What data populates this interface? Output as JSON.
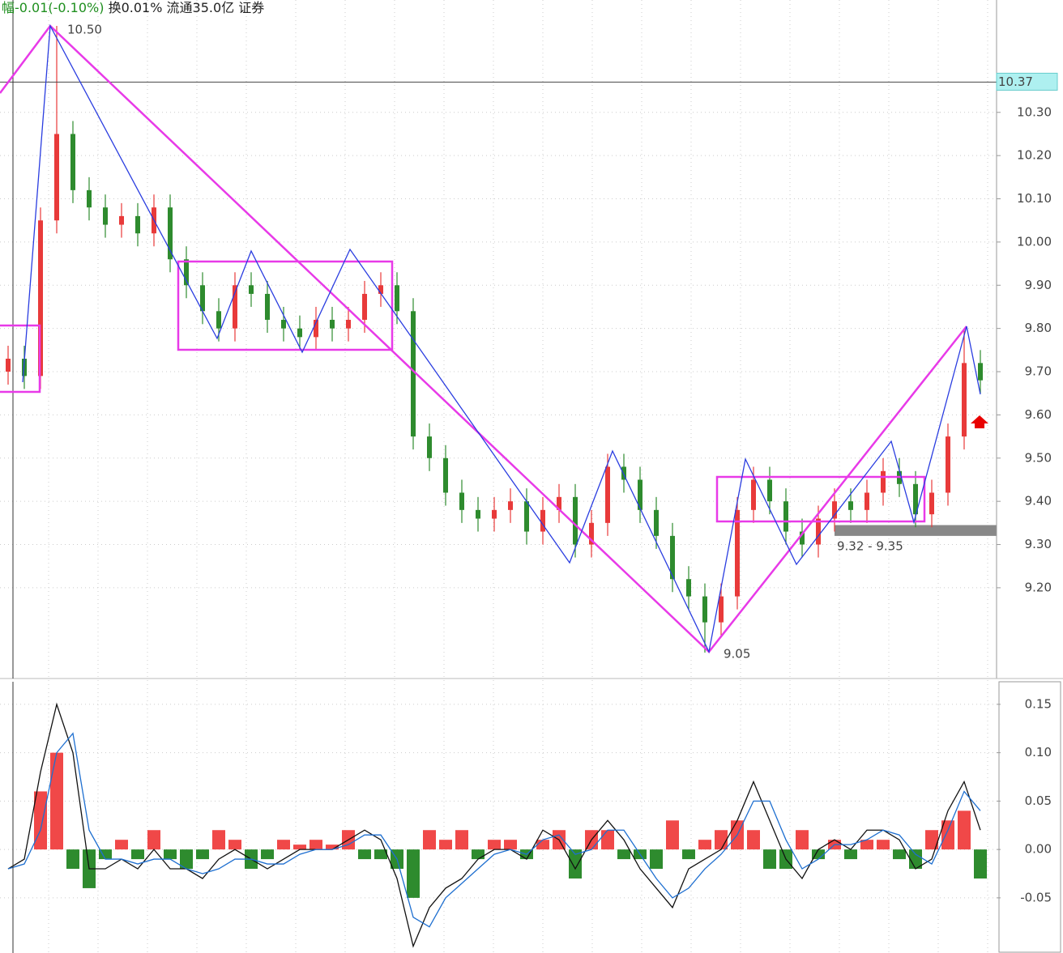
{
  "header": {
    "change": "幅-0.01(-0.10%)",
    "stats": "换0.01% 流通35.0亿 证券"
  },
  "chart_data": [
    {
      "type": "candlestick",
      "up_color": "#e83a3a",
      "down_color": "#2e8b2e",
      "open": [
        9.7,
        9.73,
        9.69,
        10.05,
        10.25,
        10.12,
        10.08,
        10.04,
        10.06,
        10.02,
        10.08,
        9.96,
        9.9,
        9.84,
        9.8,
        9.9,
        9.88,
        9.82,
        9.8,
        9.78,
        9.82,
        9.8,
        9.82,
        9.88,
        9.9,
        9.84,
        9.55,
        9.5,
        9.42,
        9.38,
        9.36,
        9.38,
        9.4,
        9.33,
        9.38,
        9.41,
        9.3,
        9.35,
        9.48,
        9.45,
        9.38,
        9.32,
        9.22,
        9.18,
        9.12,
        9.18,
        9.38,
        9.45,
        9.4,
        9.33,
        9.3,
        9.36,
        9.4,
        9.38,
        9.42,
        9.47,
        9.44,
        9.37,
        9.42,
        9.55,
        9.72
      ],
      "high": [
        9.76,
        9.76,
        10.08,
        10.5,
        10.28,
        10.15,
        10.11,
        10.09,
        10.09,
        10.11,
        10.11,
        9.99,
        9.93,
        9.87,
        9.93,
        9.93,
        9.91,
        9.85,
        9.83,
        9.85,
        9.85,
        9.85,
        9.91,
        9.93,
        9.93,
        9.87,
        9.58,
        9.53,
        9.45,
        9.41,
        9.41,
        9.43,
        9.43,
        9.41,
        9.44,
        9.44,
        9.38,
        9.51,
        9.51,
        9.48,
        9.41,
        9.35,
        9.25,
        9.21,
        9.21,
        9.41,
        9.48,
        9.48,
        9.43,
        9.36,
        9.39,
        9.43,
        9.43,
        9.45,
        9.5,
        9.5,
        9.47,
        9.45,
        9.58,
        9.8,
        9.75
      ],
      "low": [
        9.67,
        9.66,
        9.66,
        10.02,
        10.09,
        10.05,
        10.01,
        10.01,
        9.99,
        9.99,
        9.93,
        9.87,
        9.81,
        9.77,
        9.77,
        9.85,
        9.79,
        9.77,
        9.75,
        9.75,
        9.77,
        9.77,
        9.79,
        9.85,
        9.81,
        9.52,
        9.47,
        9.39,
        9.35,
        9.33,
        9.33,
        9.35,
        9.3,
        9.3,
        9.35,
        9.27,
        9.27,
        9.32,
        9.42,
        9.35,
        9.29,
        9.19,
        9.15,
        9.05,
        9.09,
        9.15,
        9.35,
        9.37,
        9.3,
        9.27,
        9.27,
        9.33,
        9.35,
        9.35,
        9.39,
        9.41,
        9.34,
        9.34,
        9.39,
        9.52,
        9.65
      ],
      "close": [
        9.73,
        9.69,
        10.05,
        10.25,
        10.12,
        10.08,
        10.04,
        10.06,
        10.02,
        10.08,
        9.96,
        9.9,
        9.84,
        9.8,
        9.9,
        9.88,
        9.82,
        9.8,
        9.78,
        9.82,
        9.8,
        9.82,
        9.88,
        9.9,
        9.84,
        9.55,
        9.5,
        9.42,
        9.38,
        9.36,
        9.38,
        9.4,
        9.33,
        9.38,
        9.41,
        9.3,
        9.35,
        9.48,
        9.45,
        9.38,
        9.32,
        9.22,
        9.18,
        9.12,
        9.18,
        9.38,
        9.45,
        9.4,
        9.33,
        9.3,
        9.36,
        9.4,
        9.38,
        9.42,
        9.47,
        9.44,
        9.37,
        9.42,
        9.55,
        9.72,
        9.68
      ],
      "ylim": [
        8.99,
        10.56
      ],
      "yticks": [
        {
          "value": 10.3,
          "label": "10.30"
        },
        {
          "value": 10.2,
          "label": "10.20"
        },
        {
          "value": 10.1,
          "label": "10.10"
        },
        {
          "value": 10.0,
          "label": "10.00"
        },
        {
          "value": 9.9,
          "label": "9.90"
        },
        {
          "value": 9.8,
          "label": "9.80"
        },
        {
          "value": 9.7,
          "label": "9.70"
        },
        {
          "value": 9.6,
          "label": "9.60"
        },
        {
          "value": 9.5,
          "label": "9.50"
        },
        {
          "value": 9.4,
          "label": "9.40"
        },
        {
          "value": 9.3,
          "label": "9.30"
        },
        {
          "value": 9.2,
          "label": "9.20"
        }
      ],
      "price_line": 10.37,
      "zone": [
        9.32,
        9.345
      ],
      "annotations": [
        "10.50",
        "9.05",
        "9.32 - 9.35"
      ],
      "grid": true
    },
    {
      "type": "macd",
      "up_color": "#f04848",
      "down_color": "#2e8b2e",
      "values": [
        0.0,
        0.0,
        0.06,
        0.1,
        -0.02,
        -0.04,
        -0.01,
        0.01,
        -0.01,
        0.02,
        -0.01,
        -0.02,
        -0.01,
        0.02,
        0.01,
        -0.02,
        -0.01,
        0.01,
        0.005,
        0.01,
        0.005,
        0.02,
        -0.01,
        -0.01,
        -0.02,
        -0.05,
        0.02,
        0.01,
        0.02,
        -0.01,
        0.01,
        0.01,
        -0.01,
        0.01,
        0.02,
        -0.03,
        0.02,
        0.02,
        -0.01,
        -0.01,
        -0.02,
        0.03,
        -0.01,
        0.01,
        0.02,
        0.03,
        0.02,
        -0.02,
        -0.02,
        0.02,
        -0.01,
        0.01,
        -0.01,
        0.01,
        0.01,
        -0.01,
        -0.02,
        0.02,
        0.03,
        0.04,
        -0.03
      ],
      "series": [
        {
          "color": "#111111",
          "values": [
            -0.02,
            -0.01,
            0.08,
            0.15,
            0.1,
            -0.02,
            -0.02,
            -0.01,
            -0.02,
            0.0,
            -0.02,
            -0.02,
            -0.03,
            -0.01,
            0.0,
            -0.01,
            -0.02,
            -0.01,
            0.0,
            0.0,
            0.0,
            0.01,
            0.02,
            0.01,
            -0.03,
            -0.1,
            -0.06,
            -0.04,
            -0.03,
            -0.01,
            0.0,
            0.0,
            -0.01,
            0.02,
            0.01,
            -0.02,
            0.01,
            0.03,
            0.01,
            -0.02,
            -0.04,
            -0.06,
            -0.02,
            -0.01,
            0.0,
            0.03,
            0.07,
            0.03,
            -0.01,
            -0.03,
            0.0,
            0.01,
            0.0,
            0.02,
            0.02,
            0.01,
            -0.02,
            -0.01,
            0.04,
            0.07,
            0.02
          ]
        },
        {
          "color": "#1e6fd0",
          "values": [
            -0.02,
            -0.015,
            0.02,
            0.1,
            0.12,
            0.02,
            -0.01,
            -0.01,
            -0.015,
            -0.01,
            -0.01,
            -0.02,
            -0.025,
            -0.02,
            -0.01,
            -0.01,
            -0.015,
            -0.015,
            -0.005,
            0.0,
            0.0,
            0.005,
            0.015,
            0.015,
            -0.01,
            -0.07,
            -0.08,
            -0.05,
            -0.035,
            -0.02,
            -0.005,
            0.0,
            -0.005,
            0.01,
            0.015,
            -0.005,
            0.0,
            0.02,
            0.02,
            -0.005,
            -0.03,
            -0.05,
            -0.04,
            -0.02,
            -0.005,
            0.015,
            0.05,
            0.05,
            0.01,
            -0.02,
            -0.01,
            0.005,
            0.005,
            0.01,
            0.02,
            0.015,
            -0.005,
            -0.015,
            0.02,
            0.06,
            0.04
          ]
        }
      ],
      "ylim": [
        -0.107,
        0.175
      ],
      "yticks": [
        0.15,
        {
          "value": 0.1,
          "label": "0.10"
        },
        0.05,
        {
          "value": 0,
          "label": "0.00"
        },
        -0.05
      ],
      "grid": true
    }
  ]
}
